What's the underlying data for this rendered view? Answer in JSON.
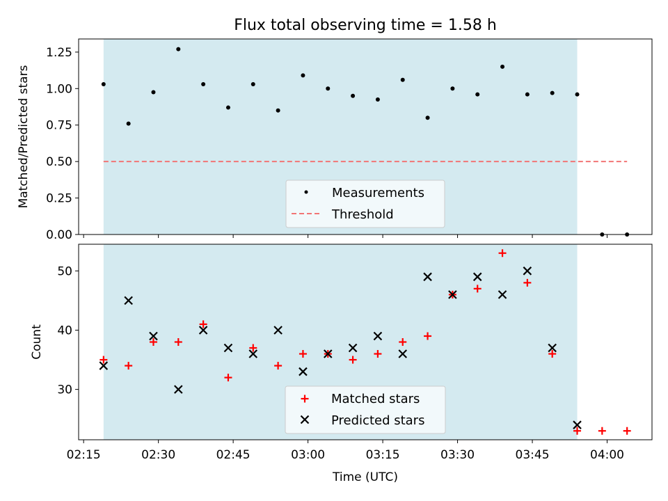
{
  "chart_data": [
    {
      "type": "scatter",
      "title": "Flux total observing time = 1.58 h",
      "xlabel": "",
      "ylabel": "Matched/Predicted stars",
      "ylim": [
        0,
        1.34
      ],
      "yticks": [
        0.0,
        0.25,
        0.5,
        0.75,
        1.0,
        1.25
      ],
      "ytick_labels": [
        "0.00",
        "0.25",
        "0.50",
        "0.75",
        "1.00",
        "1.25"
      ],
      "x_axis": "shared with lower panel (times in UTC)",
      "shaded_span": [
        "02:19",
        "03:54"
      ],
      "shaded_color": "#d4eaf0",
      "legend_placement": "lower center",
      "series": [
        {
          "name": "Measurements",
          "marker": "dot",
          "color": "#000000",
          "x": [
            "02:19",
            "02:24",
            "02:29",
            "02:34",
            "02:39",
            "02:44",
            "02:49",
            "02:54",
            "02:59",
            "03:04",
            "03:09",
            "03:14",
            "03:19",
            "03:24",
            "03:29",
            "03:34",
            "03:39",
            "03:44",
            "03:49",
            "03:54",
            "03:59",
            "04:04"
          ],
          "values": [
            1.03,
            0.76,
            0.975,
            1.27,
            1.03,
            0.87,
            1.03,
            0.85,
            1.09,
            1.0,
            0.95,
            0.925,
            1.06,
            0.8,
            1.0,
            0.96,
            1.15,
            0.96,
            0.97,
            0.96,
            0.0,
            0.0
          ]
        },
        {
          "name": "Threshold",
          "marker": "dashed-line",
          "color": "#f27575",
          "x": [
            "02:19",
            "04:04"
          ],
          "values": [
            0.5,
            0.5
          ]
        }
      ]
    },
    {
      "type": "scatter",
      "title": "",
      "xlabel": "Time (UTC)",
      "ylabel": "Count",
      "ylim": [
        21.5,
        54.5
      ],
      "yticks": [
        30,
        40,
        50
      ],
      "ytick_labels": [
        "30",
        "40",
        "50"
      ],
      "xlim": [
        "02:14",
        "04:09"
      ],
      "xticks": [
        "02:15",
        "02:30",
        "02:45",
        "03:00",
        "03:15",
        "03:30",
        "03:45",
        "04:00"
      ],
      "xtick_labels": [
        "02:15",
        "02:30",
        "02:45",
        "03:00",
        "03:15",
        "03:30",
        "03:45",
        "04:00"
      ],
      "shaded_span": [
        "02:19",
        "03:54"
      ],
      "shaded_color": "#d4eaf0",
      "legend_placement": "lower center",
      "series": [
        {
          "name": "Matched stars",
          "marker": "plus",
          "color": "#ff0000",
          "x": [
            "02:19",
            "02:24",
            "02:29",
            "02:34",
            "02:39",
            "02:44",
            "02:49",
            "02:54",
            "02:59",
            "03:04",
            "03:09",
            "03:14",
            "03:19",
            "03:24",
            "03:29",
            "03:34",
            "03:39",
            "03:44",
            "03:49",
            "03:54",
            "03:59",
            "04:04"
          ],
          "values": [
            35,
            34,
            38,
            38,
            41,
            32,
            37,
            34,
            36,
            36,
            35,
            36,
            38,
            39,
            46,
            47,
            53,
            48,
            36,
            23,
            23,
            23
          ]
        },
        {
          "name": "Predicted stars",
          "marker": "x",
          "color": "#000000",
          "x": [
            "02:19",
            "02:24",
            "02:29",
            "02:34",
            "02:39",
            "02:44",
            "02:49",
            "02:54",
            "02:59",
            "03:04",
            "03:09",
            "03:14",
            "03:19",
            "03:24",
            "03:29",
            "03:34",
            "03:39",
            "03:44",
            "03:49",
            "03:54"
          ],
          "values": [
            34,
            45,
            39,
            30,
            40,
            37,
            36,
            40,
            33,
            36,
            37,
            39,
            36,
            49,
            46,
            49,
            46,
            50,
            37,
            24
          ]
        }
      ]
    }
  ]
}
